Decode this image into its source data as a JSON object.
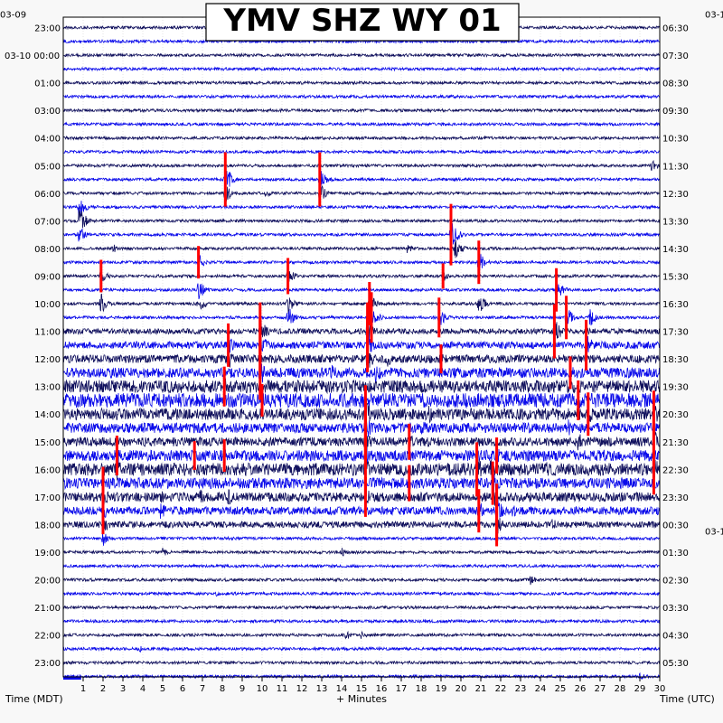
{
  "title": "YMV SHZ WY 01",
  "colors": {
    "background": "#f8f8f8",
    "plot_background": "#ffffff",
    "trace_dark": "#12125e",
    "trace_blue": "#0b0bea",
    "clipped": "#ff0000",
    "grid": "#c8c8c8"
  },
  "chart_data": {
    "type": "helicorder",
    "title": "YMV SHZ WY 01",
    "xlabel": "+ Minutes",
    "left_axis_label": "Time (MDT)",
    "right_axis_label": "Time (UTC)",
    "x_range": [
      0,
      30
    ],
    "x_ticks": [
      1,
      2,
      3,
      4,
      5,
      6,
      7,
      8,
      9,
      10,
      11,
      12,
      13,
      14,
      15,
      16,
      17,
      18,
      19,
      20,
      21,
      22,
      23,
      24,
      25,
      26,
      27,
      28,
      29,
      30
    ],
    "trace_count": 48,
    "date_labels_left": [
      {
        "row": 0,
        "label": "03-09"
      },
      {
        "row": 2,
        "label": "03-10 00:00"
      }
    ],
    "date_labels_right": [
      {
        "row": 0,
        "label": "03-1"
      },
      {
        "row": 36,
        "label": "03-1"
      }
    ],
    "left_time_labels": [
      {
        "row": 0,
        "label": "23:00"
      },
      {
        "row": 2,
        "label": "00:00"
      },
      {
        "row": 4,
        "label": "01:00"
      },
      {
        "row": 6,
        "label": "03:00"
      },
      {
        "row": 8,
        "label": "04:00"
      },
      {
        "row": 10,
        "label": "05:00"
      },
      {
        "row": 12,
        "label": "06:00"
      },
      {
        "row": 14,
        "label": "07:00"
      },
      {
        "row": 16,
        "label": "08:00"
      },
      {
        "row": 18,
        "label": "09:00"
      },
      {
        "row": 20,
        "label": "10:00"
      },
      {
        "row": 22,
        "label": "11:00"
      },
      {
        "row": 24,
        "label": "12:00"
      },
      {
        "row": 26,
        "label": "13:00"
      },
      {
        "row": 28,
        "label": "14:00"
      },
      {
        "row": 30,
        "label": "15:00"
      },
      {
        "row": 32,
        "label": "16:00"
      },
      {
        "row": 34,
        "label": "17:00"
      },
      {
        "row": 36,
        "label": "18:00"
      },
      {
        "row": 38,
        "label": "19:00"
      },
      {
        "row": 40,
        "label": "20:00"
      },
      {
        "row": 42,
        "label": "21:00"
      },
      {
        "row": 44,
        "label": "22:00"
      },
      {
        "row": 46,
        "label": "23:00"
      }
    ],
    "right_time_labels": [
      {
        "row": 0,
        "label": "06:30"
      },
      {
        "row": 2,
        "label": "07:30"
      },
      {
        "row": 4,
        "label": "08:30"
      },
      {
        "row": 6,
        "label": "09:30"
      },
      {
        "row": 8,
        "label": "10:30"
      },
      {
        "row": 10,
        "label": "11:30"
      },
      {
        "row": 12,
        "label": "12:30"
      },
      {
        "row": 14,
        "label": "13:30"
      },
      {
        "row": 16,
        "label": "14:30"
      },
      {
        "row": 18,
        "label": "15:30"
      },
      {
        "row": 20,
        "label": "16:30"
      },
      {
        "row": 22,
        "label": "17:30"
      },
      {
        "row": 24,
        "label": "18:30"
      },
      {
        "row": 26,
        "label": "19:30"
      },
      {
        "row": 28,
        "label": "20:30"
      },
      {
        "row": 30,
        "label": "21:30"
      },
      {
        "row": 32,
        "label": "22:30"
      },
      {
        "row": 34,
        "label": "23:30"
      },
      {
        "row": 36,
        "label": "00:30"
      },
      {
        "row": 38,
        "label": "01:30"
      },
      {
        "row": 40,
        "label": "02:30"
      },
      {
        "row": 42,
        "label": "03:30"
      },
      {
        "row": 44,
        "label": "04:30"
      },
      {
        "row": 46,
        "label": "05:30"
      }
    ],
    "events": [
      {
        "row": 10,
        "minute": 29.6,
        "amp": 14
      },
      {
        "row": 11,
        "minute": 8.15,
        "amp": 30,
        "clipped": true
      },
      {
        "row": 11,
        "minute": 12.9,
        "amp": 30,
        "clipped": true
      },
      {
        "row": 12,
        "minute": 8.15,
        "amp": 22
      },
      {
        "row": 12,
        "minute": 12.9,
        "amp": 22
      },
      {
        "row": 12,
        "minute": 10.2,
        "amp": 10
      },
      {
        "row": 13,
        "minute": 0.8,
        "amp": 24
      },
      {
        "row": 14,
        "minute": 0.8,
        "amp": 30
      },
      {
        "row": 15,
        "minute": 19.5,
        "amp": 34,
        "clipped": true
      },
      {
        "row": 15,
        "minute": 0.8,
        "amp": 20
      },
      {
        "row": 16,
        "minute": 2.5,
        "amp": 10
      },
      {
        "row": 16,
        "minute": 17.3,
        "amp": 10
      },
      {
        "row": 16,
        "minute": 19.7,
        "amp": 22
      },
      {
        "row": 17,
        "minute": 6.8,
        "amp": 18,
        "clipped": true
      },
      {
        "row": 17,
        "minute": 20.9,
        "amp": 24,
        "clipped": true
      },
      {
        "row": 18,
        "minute": 1.9,
        "amp": 18,
        "clipped": true
      },
      {
        "row": 18,
        "minute": 11.3,
        "amp": 20,
        "clipped": true
      },
      {
        "row": 18,
        "minute": 19.1,
        "amp": 14,
        "clipped": true
      },
      {
        "row": 19,
        "minute": 6.8,
        "amp": 22
      },
      {
        "row": 19,
        "minute": 24.8,
        "amp": 24,
        "clipped": true
      },
      {
        "row": 20,
        "minute": 1.9,
        "amp": 24
      },
      {
        "row": 20,
        "minute": 6.8,
        "amp": 20
      },
      {
        "row": 20,
        "minute": 11.3,
        "amp": 22
      },
      {
        "row": 20,
        "minute": 15.4,
        "amp": 24,
        "clipped": true
      },
      {
        "row": 20,
        "minute": 20.9,
        "amp": 24
      },
      {
        "row": 21,
        "minute": 11.3,
        "amp": 26
      },
      {
        "row": 21,
        "minute": 15.5,
        "amp": 28,
        "clipped": true
      },
      {
        "row": 21,
        "minute": 18.9,
        "amp": 22,
        "clipped": true
      },
      {
        "row": 21,
        "minute": 25.3,
        "amp": 24,
        "clipped": true
      },
      {
        "row": 21,
        "minute": 26.5,
        "amp": 20
      },
      {
        "row": 22,
        "minute": 9.9,
        "amp": 32,
        "clipped": true
      },
      {
        "row": 22,
        "minute": 15.3,
        "amp": 32,
        "clipped": true
      },
      {
        "row": 22,
        "minute": 24.7,
        "amp": 30,
        "clipped": true
      },
      {
        "row": 23,
        "minute": 8.3,
        "amp": 24,
        "clipped": true
      },
      {
        "row": 23,
        "minute": 9.9,
        "amp": 30,
        "clipped": true
      },
      {
        "row": 23,
        "minute": 15.3,
        "amp": 30,
        "clipped": true
      },
      {
        "row": 23,
        "minute": 26.3,
        "amp": 28,
        "clipped": true
      },
      {
        "row": 24,
        "minute": 8.3,
        "amp": 22
      },
      {
        "row": 24,
        "minute": 15.3,
        "amp": 26
      },
      {
        "row": 24,
        "minute": 16.3,
        "amp": 22
      },
      {
        "row": 24,
        "minute": 19.0,
        "amp": 16,
        "clipped": true
      },
      {
        "row": 25,
        "minute": 9.9,
        "amp": 30,
        "clipped": true
      },
      {
        "row": 25,
        "minute": 13.5,
        "amp": 20
      },
      {
        "row": 25,
        "minute": 15.7,
        "amp": 24
      },
      {
        "row": 25,
        "minute": 25.5,
        "amp": 18,
        "clipped": true
      },
      {
        "row": 26,
        "minute": 2.1,
        "amp": 14
      },
      {
        "row": 26,
        "minute": 8.1,
        "amp": 22,
        "clipped": true
      },
      {
        "row": 26,
        "minute": 13.8,
        "amp": 20
      },
      {
        "row": 27,
        "minute": 10.0,
        "amp": 18,
        "clipped": true
      },
      {
        "row": 27,
        "minute": 15.2,
        "amp": 22
      },
      {
        "row": 27,
        "minute": 25.9,
        "amp": 22,
        "clipped": true
      },
      {
        "row": 28,
        "minute": 15.2,
        "amp": 32,
        "clipped": true
      },
      {
        "row": 28,
        "minute": 18.4,
        "amp": 20
      },
      {
        "row": 28,
        "minute": 26.4,
        "amp": 24,
        "clipped": true
      },
      {
        "row": 28,
        "minute": 29.7,
        "amp": 26,
        "clipped": true
      },
      {
        "row": 29,
        "minute": 15.2,
        "amp": 30,
        "clipped": true
      },
      {
        "row": 29,
        "minute": 18.0,
        "amp": 20
      },
      {
        "row": 29,
        "minute": 25.4,
        "amp": 18
      },
      {
        "row": 30,
        "minute": 15.2,
        "amp": 28,
        "clipped": true
      },
      {
        "row": 30,
        "minute": 17.4,
        "amp": 20,
        "clipped": true
      },
      {
        "row": 30,
        "minute": 25.9,
        "amp": 24
      },
      {
        "row": 30,
        "minute": 29.7,
        "amp": 28,
        "clipped": true
      },
      {
        "row": 31,
        "minute": 2.7,
        "amp": 22,
        "clipped": true
      },
      {
        "row": 31,
        "minute": 6.6,
        "amp": 16,
        "clipped": true
      },
      {
        "row": 31,
        "minute": 8.1,
        "amp": 18,
        "clipped": true
      },
      {
        "row": 31,
        "minute": 15.2,
        "amp": 24
      },
      {
        "row": 31,
        "minute": 21.8,
        "amp": 20,
        "clipped": true
      },
      {
        "row": 32,
        "minute": 2.7,
        "amp": 24
      },
      {
        "row": 32,
        "minute": 6.4,
        "amp": 18
      },
      {
        "row": 32,
        "minute": 8.1,
        "amp": 20
      },
      {
        "row": 32,
        "minute": 15.2,
        "amp": 30,
        "clipped": true
      },
      {
        "row": 32,
        "minute": 20.8,
        "amp": 30,
        "clipped": true
      },
      {
        "row": 32,
        "minute": 21.5,
        "amp": 26
      },
      {
        "row": 32,
        "minute": 24.3,
        "amp": 16
      },
      {
        "row": 32,
        "minute": 29.7,
        "amp": 28,
        "clipped": true
      },
      {
        "row": 33,
        "minute": 2.0,
        "amp": 18,
        "clipped": true
      },
      {
        "row": 33,
        "minute": 17.4,
        "amp": 20,
        "clipped": true
      },
      {
        "row": 33,
        "minute": 21.6,
        "amp": 24,
        "clipped": true
      },
      {
        "row": 33,
        "minute": 24.9,
        "amp": 14
      },
      {
        "row": 34,
        "minute": 2.0,
        "amp": 24
      },
      {
        "row": 34,
        "minute": 4.8,
        "amp": 20
      },
      {
        "row": 34,
        "minute": 6.8,
        "amp": 22
      },
      {
        "row": 34,
        "minute": 8.3,
        "amp": 20
      },
      {
        "row": 34,
        "minute": 15.2,
        "amp": 22,
        "clipped": true
      },
      {
        "row": 34,
        "minute": 21.6,
        "amp": 28
      },
      {
        "row": 35,
        "minute": 2.0,
        "amp": 26,
        "clipped": true
      },
      {
        "row": 35,
        "minute": 4.9,
        "amp": 20
      },
      {
        "row": 35,
        "minute": 20.9,
        "amp": 24,
        "clipped": true
      },
      {
        "row": 35,
        "minute": 21.8,
        "amp": 30,
        "clipped": true
      },
      {
        "row": 35,
        "minute": 22.5,
        "amp": 22
      },
      {
        "row": 36,
        "minute": 2.0,
        "amp": 22
      },
      {
        "row": 36,
        "minute": 21.8,
        "amp": 24,
        "clipped": true
      },
      {
        "row": 36,
        "minute": 24.6,
        "amp": 14
      },
      {
        "row": 37,
        "minute": 2.0,
        "amp": 16
      },
      {
        "row": 38,
        "minute": 5.0,
        "amp": 10
      },
      {
        "row": 38,
        "minute": 14.0,
        "amp": 10
      },
      {
        "row": 40,
        "minute": 23.5,
        "amp": 10
      },
      {
        "row": 41,
        "minute": 7.7,
        "amp": 8
      },
      {
        "row": 44,
        "minute": 14.2,
        "amp": 12
      },
      {
        "row": 44,
        "minute": 15.0,
        "amp": 10
      },
      {
        "row": 45,
        "minute": 3.8,
        "amp": 8
      },
      {
        "row": 47,
        "minute": 29.0,
        "amp": 8
      }
    ],
    "noisy_rows": [
      {
        "row": 22,
        "level": 3.0
      },
      {
        "row": 23,
        "level": 4.0
      },
      {
        "row": 24,
        "level": 4.5
      },
      {
        "row": 25,
        "level": 5.5
      },
      {
        "row": 26,
        "level": 7.0
      },
      {
        "row": 27,
        "level": 8.0
      },
      {
        "row": 28,
        "level": 6.5
      },
      {
        "row": 29,
        "level": 5.5
      },
      {
        "row": 30,
        "level": 5.0
      },
      {
        "row": 31,
        "level": 6.0
      },
      {
        "row": 32,
        "level": 7.0
      },
      {
        "row": 33,
        "level": 6.0
      },
      {
        "row": 34,
        "level": 5.0
      },
      {
        "row": 35,
        "level": 4.5
      },
      {
        "row": 36,
        "level": 3.5
      }
    ],
    "scale_bar": {
      "row": 47,
      "minute_start": 0.0,
      "minute_end": 0.9
    }
  }
}
